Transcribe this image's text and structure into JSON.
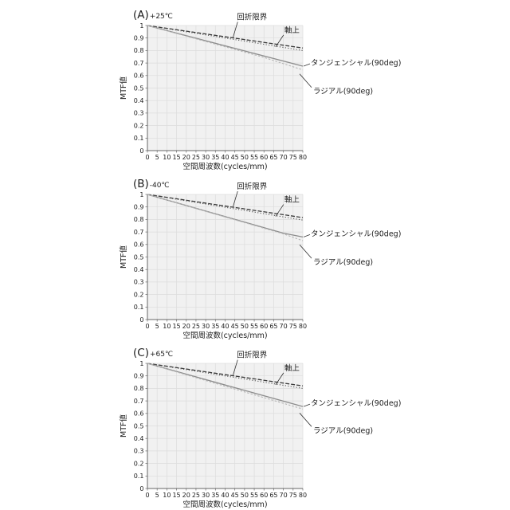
{
  "figure": {
    "background": "#ffffff",
    "plot_bg": "#f1f1f1",
    "grid_color": "#dcdcdc",
    "axis_color": "#666666",
    "leader_color": "#333333"
  },
  "axis": {
    "x_label": "空間周波数(cycles/mm)",
    "y_label": "MTF値",
    "x_ticks": [
      0,
      5,
      10,
      15,
      20,
      25,
      30,
      35,
      40,
      45,
      50,
      55,
      60,
      65,
      70,
      75,
      80
    ],
    "y_ticks": [
      "1",
      "0.9",
      "0.8",
      "0.7",
      "0.6",
      "0.5",
      "0.4",
      "0.3",
      "0.2",
      "0.1",
      "0"
    ],
    "x_range": [
      0,
      80
    ],
    "y_range": [
      0,
      1
    ]
  },
  "series_styles": {
    "diffraction": {
      "color": "#3a3a3a"
    },
    "axial": {
      "color": "#565656"
    },
    "tangential": {
      "color": "#8c8c8c"
    },
    "radial": {
      "color": "#b4b4b4"
    }
  },
  "chart_data": [
    {
      "type": "line",
      "panel_label": "(A)",
      "temperature": "+25℃",
      "title": "(A)+25℃",
      "xlabel": "空間周波数(cycles/mm)",
      "ylabel": "MTF値",
      "xlim": [
        0,
        80
      ],
      "ylim": [
        0,
        1
      ],
      "grid": true,
      "series": [
        {
          "id": "diffraction",
          "name": "回折限界",
          "points": [
            [
              0,
              1
            ],
            [
              80,
              0.82
            ]
          ]
        },
        {
          "id": "axial",
          "name": "軸上",
          "points": [
            [
              0,
              1
            ],
            [
              80,
              0.8
            ]
          ]
        },
        {
          "id": "tangential",
          "name": "タンジェンシャル(90deg)",
          "points": [
            [
              0,
              1
            ],
            [
              80,
              0.675
            ]
          ]
        },
        {
          "id": "radial",
          "name": "ラジアル(90deg)",
          "points": [
            [
              0,
              1
            ],
            [
              60,
              0.745
            ],
            [
              80,
              0.645
            ]
          ]
        }
      ]
    },
    {
      "type": "line",
      "panel_label": "(B)",
      "temperature": "-40℃",
      "title": "(B)-40℃",
      "xlabel": "空間周波数(cycles/mm)",
      "ylabel": "MTF値",
      "xlim": [
        0,
        80
      ],
      "ylim": [
        0,
        1
      ],
      "grid": true,
      "series": [
        {
          "id": "diffraction",
          "name": "回折限界",
          "points": [
            [
              0,
              1
            ],
            [
              80,
              0.815
            ]
          ]
        },
        {
          "id": "axial",
          "name": "軸上",
          "points": [
            [
              0,
              1
            ],
            [
              80,
              0.795
            ]
          ]
        },
        {
          "id": "tangential",
          "name": "タンジェンシャル(90deg)",
          "points": [
            [
              0,
              1
            ],
            [
              70,
              0.69
            ],
            [
              80,
              0.66
            ]
          ]
        },
        {
          "id": "radial",
          "name": "ラジアル(90deg)",
          "points": [
            [
              0,
              1
            ],
            [
              70,
              0.685
            ],
            [
              80,
              0.63
            ]
          ]
        }
      ]
    },
    {
      "type": "line",
      "panel_label": "(C)",
      "temperature": "+65℃",
      "title": "(C)+65℃",
      "xlabel": "空間周波数(cycles/mm)",
      "ylabel": "MTF値",
      "xlim": [
        0,
        80
      ],
      "ylim": [
        0,
        1
      ],
      "grid": true,
      "series": [
        {
          "id": "diffraction",
          "name": "回折限界",
          "points": [
            [
              0,
              1
            ],
            [
              80,
              0.82
            ]
          ]
        },
        {
          "id": "axial",
          "name": "軸上",
          "points": [
            [
              0,
              1
            ],
            [
              80,
              0.8
            ]
          ]
        },
        {
          "id": "tangential",
          "name": "タンジェンシャル(90deg)",
          "points": [
            [
              0,
              1
            ],
            [
              80,
              0.655
            ]
          ]
        },
        {
          "id": "radial",
          "name": "ラジアル(90deg)",
          "points": [
            [
              0,
              1
            ],
            [
              80,
              0.635
            ]
          ]
        }
      ]
    }
  ]
}
